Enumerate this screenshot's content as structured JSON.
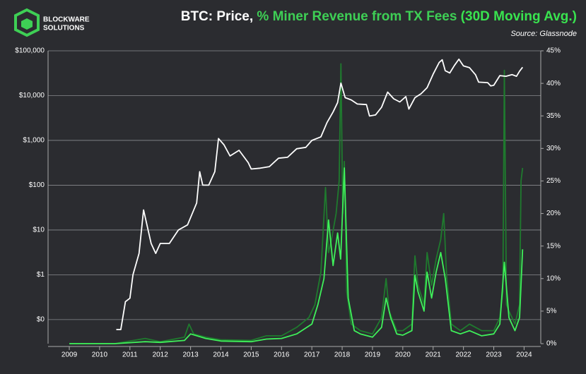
{
  "logo": [
    "BLOCKWARE",
    "SOLUTIONS"
  ],
  "chart_data": {
    "type": "line",
    "title": [
      "BTC: Price,",
      "% Miner Revenue from TX Fees",
      "(30D Moving Avg.)"
    ],
    "title_colors": [
      "#ffffff",
      "#3ecf55",
      "#39e34f"
    ],
    "subtitle": "Source: Glassnode",
    "log_y": true,
    "grid": true,
    "xlim": [
      2008.3,
      2024.55
    ],
    "xticks": [
      2009,
      2010,
      2011,
      2012,
      2013,
      2014,
      2015,
      2016,
      2017,
      2018,
      2019,
      2020,
      2021,
      2022,
      2023,
      2024
    ],
    "ylim": [
      0.029,
      100000
    ],
    "yticks": [
      {
        "value": 0.1,
        "label": "$0"
      },
      {
        "value": 1,
        "label": "$1"
      },
      {
        "value": 10,
        "label": "$10"
      },
      {
        "value": 100,
        "label": "$100"
      },
      {
        "value": 1000,
        "label": "$1,000"
      },
      {
        "value": 10000,
        "label": "$10,000"
      },
      {
        "value": 100000,
        "label": "$100,000"
      }
    ],
    "y2lim": [
      0,
      45
    ],
    "y2ticks": [
      {
        "value": 0,
        "label": "0%"
      },
      {
        "value": 5,
        "label": "5%"
      },
      {
        "value": 10,
        "label": "10%"
      },
      {
        "value": 15,
        "label": "15%"
      },
      {
        "value": 20,
        "label": "20%"
      },
      {
        "value": 25,
        "label": "25%"
      },
      {
        "value": 30,
        "label": "30%"
      },
      {
        "value": 35,
        "label": "35%"
      },
      {
        "value": 40,
        "label": "40%"
      },
      {
        "value": 45,
        "label": "45%"
      }
    ],
    "series": [
      {
        "color": "#1f7a2e",
        "axis": "y2",
        "x": [
          2009.0,
          2010.5,
          2011.5,
          2012.0,
          2012.8,
          2012.95,
          2013.1,
          2013.5,
          2014.0,
          2015.0,
          2015.5,
          2016.0,
          2016.5,
          2016.9,
          2017.1,
          2017.3,
          2017.45,
          2017.55,
          2017.65,
          2017.8,
          2017.9,
          2017.96,
          2018.02,
          2018.07,
          2018.15,
          2018.3,
          2018.6,
          2019.0,
          2019.3,
          2019.45,
          2019.55,
          2019.8,
          2020.0,
          2020.3,
          2020.4,
          2020.5,
          2020.7,
          2020.8,
          2020.95,
          2021.1,
          2021.25,
          2021.35,
          2021.45,
          2021.6,
          2021.9,
          2022.2,
          2022.6,
          2023.0,
          2023.2,
          2023.3,
          2023.35,
          2023.42,
          2023.5,
          2023.7,
          2023.85,
          2023.9,
          2023.95
        ],
        "values": [
          0,
          0,
          0.8,
          0.3,
          1,
          3,
          1.5,
          1,
          0.6,
          0.5,
          1.2,
          1.2,
          2.5,
          4,
          6,
          11,
          24,
          14,
          16,
          20,
          25,
          43,
          20,
          28,
          8,
          3,
          2,
          1.5,
          4,
          10,
          5,
          2,
          2,
          3,
          13.5,
          9,
          6,
          14,
          9,
          13,
          16,
          20,
          10,
          3,
          2,
          3,
          2,
          2,
          4,
          8,
          42,
          6,
          5,
          3,
          6,
          25,
          27
        ]
      },
      {
        "color": "#3ff05a",
        "axis": "y2",
        "x": [
          2009.0,
          2010.5,
          2011.5,
          2012.0,
          2012.8,
          2013.0,
          2013.5,
          2014.0,
          2015.0,
          2015.5,
          2016.0,
          2016.5,
          2017.0,
          2017.2,
          2017.4,
          2017.55,
          2017.7,
          2017.85,
          2017.95,
          2018.07,
          2018.2,
          2018.4,
          2018.6,
          2019.0,
          2019.3,
          2019.45,
          2019.6,
          2019.8,
          2020.0,
          2020.3,
          2020.4,
          2020.5,
          2020.7,
          2020.8,
          2020.95,
          2021.1,
          2021.25,
          2021.4,
          2021.6,
          2021.9,
          2022.2,
          2022.6,
          2023.0,
          2023.2,
          2023.35,
          2023.5,
          2023.7,
          2023.85,
          2023.95
        ],
        "values": [
          0,
          0,
          0.3,
          0.2,
          0.5,
          1.5,
          0.8,
          0.4,
          0.3,
          0.7,
          0.8,
          1.5,
          3,
          6,
          10,
          19,
          12,
          17,
          13,
          27,
          7,
          2,
          1.5,
          1,
          2.5,
          7,
          4,
          1.5,
          1.3,
          2,
          10.5,
          8,
          5,
          11,
          7,
          11,
          14,
          10,
          2,
          1.5,
          2,
          1.2,
          1.5,
          3,
          12.5,
          4,
          2,
          4,
          14.5
        ]
      },
      {
        "color": "#ffffff",
        "axis": "y",
        "x": [
          2010.55,
          2010.7,
          2010.85,
          2011.0,
          2011.1,
          2011.3,
          2011.45,
          2011.55,
          2011.7,
          2011.85,
          2012.0,
          2012.3,
          2012.6,
          2012.9,
          2013.2,
          2013.3,
          2013.4,
          2013.6,
          2013.8,
          2013.92,
          2014.1,
          2014.3,
          2014.6,
          2014.9,
          2015.0,
          2015.3,
          2015.6,
          2015.9,
          2016.2,
          2016.5,
          2016.8,
          2017.0,
          2017.3,
          2017.5,
          2017.7,
          2017.85,
          2017.96,
          2018.1,
          2018.3,
          2018.5,
          2018.8,
          2018.9,
          2019.1,
          2019.3,
          2019.5,
          2019.7,
          2019.9,
          2020.1,
          2020.2,
          2020.4,
          2020.6,
          2020.8,
          2021.0,
          2021.2,
          2021.3,
          2021.4,
          2021.55,
          2021.7,
          2021.85,
          2022.0,
          2022.2,
          2022.4,
          2022.5,
          2022.8,
          2022.9,
          2023.0,
          2023.2,
          2023.4,
          2023.6,
          2023.75,
          2023.85,
          2023.95
        ],
        "values": [
          0.06,
          0.06,
          0.25,
          0.3,
          1,
          3,
          28,
          14,
          5,
          3,
          5,
          5,
          10,
          13,
          40,
          200,
          100,
          100,
          200,
          1100,
          800,
          450,
          600,
          320,
          230,
          240,
          260,
          400,
          420,
          650,
          700,
          1000,
          1200,
          2500,
          4300,
          7000,
          19000,
          9000,
          8000,
          6500,
          6300,
          3500,
          3700,
          5500,
          12000,
          8500,
          7200,
          9500,
          5000,
          9000,
          11000,
          15000,
          30000,
          55000,
          63000,
          36000,
          32000,
          47000,
          65000,
          46000,
          42000,
          29000,
          20000,
          19500,
          16500,
          17000,
          28000,
          27000,
          29500,
          27000,
          35000,
          43000
        ]
      }
    ]
  }
}
